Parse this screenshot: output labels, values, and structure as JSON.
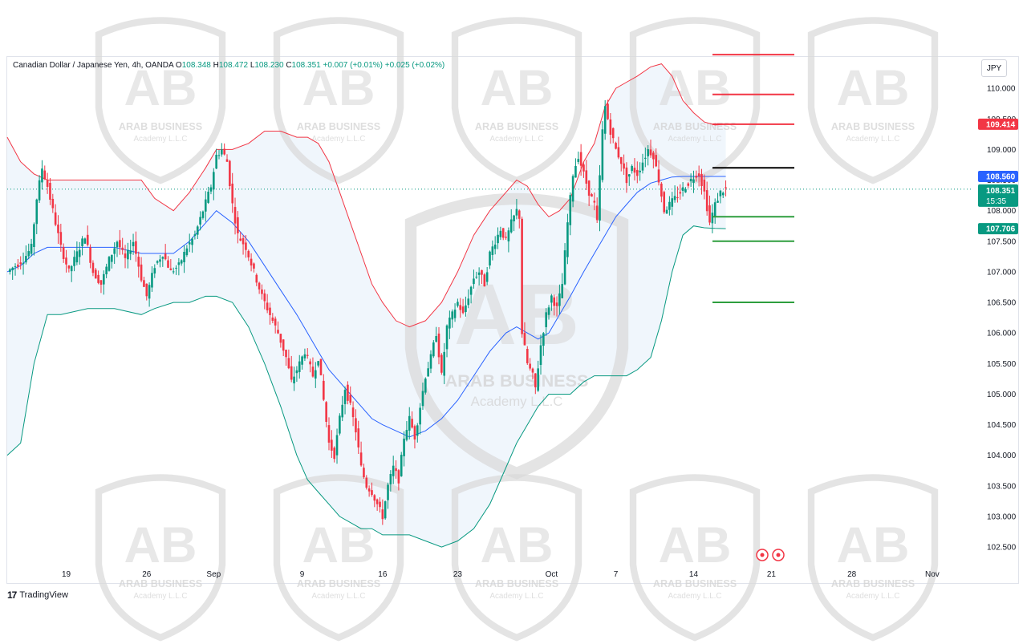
{
  "legend": {
    "symbol": "Canadian Dollar / Japanese Yen, 4h, OANDA",
    "o_label": "O",
    "o_value": "108.348",
    "h_label": "H",
    "h_value": "108.472",
    "l_label": "L",
    "l_value": "108.230",
    "c_label": "C",
    "c_value": "108.351",
    "change": "+0.007 (+0.01%)",
    "change2": "+0.025 (+0.02%)"
  },
  "currency_button": "JPY",
  "branding": {
    "logo_mark": "17",
    "name": "TradingView"
  },
  "watermark": {
    "badge_text": "AB",
    "line1": "ARAB BUSINESS",
    "line2": "Academy L.L.C"
  },
  "colors": {
    "up": "#089981",
    "down": "#f23645",
    "upper_band": "#f23645",
    "middle_band": "#2962ff",
    "lower_band": "#089981",
    "band_fill": "#e3effa",
    "resistance": "#f23645",
    "support": "#2e9e3e",
    "pivot": "#000000"
  },
  "chart_data": {
    "type": "candlestick",
    "symbol": "Canadian Dollar / Japanese Yen",
    "timeframe": "4h",
    "source": "OANDA",
    "ylim": [
      102.2,
      110.5
    ],
    "y_ticks": [
      "110.000",
      "109.500",
      "109.000",
      "108.500",
      "108.000",
      "107.500",
      "107.000",
      "106.500",
      "106.000",
      "105.500",
      "105.000",
      "104.500",
      "104.000",
      "103.500",
      "103.000",
      "102.500"
    ],
    "x_ticks": [
      "19",
      "26",
      "Sep",
      "9",
      "16",
      "23",
      "Oct",
      "7",
      "14",
      "21",
      "28",
      "Nov"
    ],
    "x_tick_index": [
      22,
      52,
      77,
      110,
      140,
      168,
      203,
      227,
      256,
      285,
      315,
      345
    ],
    "price_series": [
      [
        0,
        107.0
      ],
      [
        3,
        107.1
      ],
      [
        6,
        107.2
      ],
      [
        9,
        107.4
      ],
      [
        11,
        108.2
      ],
      [
        13,
        108.7
      ],
      [
        15,
        108.4
      ],
      [
        17,
        108.0
      ],
      [
        20,
        107.4
      ],
      [
        23,
        107.0
      ],
      [
        26,
        107.3
      ],
      [
        29,
        107.6
      ],
      [
        32,
        107.0
      ],
      [
        35,
        106.8
      ],
      [
        38,
        107.2
      ],
      [
        41,
        107.5
      ],
      [
        44,
        107.2
      ],
      [
        47,
        107.5
      ],
      [
        50,
        106.9
      ],
      [
        52,
        106.6
      ],
      [
        55,
        107.1
      ],
      [
        58,
        107.3
      ],
      [
        61,
        107.0
      ],
      [
        64,
        107.1
      ],
      [
        67,
        107.4
      ],
      [
        70,
        107.6
      ],
      [
        73,
        108.0
      ],
      [
        76,
        108.4
      ],
      [
        78,
        108.9
      ],
      [
        80,
        109.0
      ],
      [
        82,
        108.8
      ],
      [
        84,
        108.1
      ],
      [
        86,
        107.6
      ],
      [
        89,
        107.4
      ],
      [
        92,
        107.0
      ],
      [
        95,
        106.6
      ],
      [
        98,
        106.3
      ],
      [
        101,
        106.0
      ],
      [
        104,
        105.6
      ],
      [
        106,
        105.2
      ],
      [
        108,
        105.4
      ],
      [
        111,
        105.7
      ],
      [
        114,
        105.3
      ],
      [
        116,
        105.6
      ],
      [
        118,
        104.9
      ],
      [
        120,
        104.2
      ],
      [
        122,
        104.0
      ],
      [
        124,
        104.6
      ],
      [
        126,
        105.1
      ],
      [
        128,
        104.8
      ],
      [
        130,
        104.4
      ],
      [
        132,
        103.8
      ],
      [
        134,
        103.5
      ],
      [
        136,
        103.4
      ],
      [
        138,
        103.2
      ],
      [
        140,
        103.0
      ],
      [
        142,
        103.5
      ],
      [
        144,
        103.8
      ],
      [
        146,
        103.6
      ],
      [
        148,
        104.3
      ],
      [
        150,
        104.6
      ],
      [
        152,
        104.3
      ],
      [
        154,
        104.8
      ],
      [
        156,
        105.3
      ],
      [
        158,
        105.6
      ],
      [
        160,
        106.0
      ],
      [
        162,
        105.3
      ],
      [
        164,
        106.1
      ],
      [
        166,
        106.3
      ],
      [
        168,
        106.5
      ],
      [
        170,
        106.3
      ],
      [
        172,
        106.6
      ],
      [
        174,
        106.9
      ],
      [
        176,
        107.0
      ],
      [
        178,
        106.8
      ],
      [
        180,
        107.3
      ],
      [
        182,
        107.5
      ],
      [
        184,
        107.7
      ],
      [
        186,
        107.5
      ],
      [
        188,
        107.8
      ],
      [
        190,
        108.0
      ],
      [
        191,
        107.9
      ],
      [
        192,
        106.0
      ],
      [
        194,
        105.5
      ],
      [
        196,
        105.3
      ],
      [
        197,
        105.1
      ],
      [
        199,
        105.8
      ],
      [
        201,
        106.3
      ],
      [
        203,
        106.6
      ],
      [
        205,
        106.4
      ],
      [
        207,
        106.8
      ],
      [
        209,
        107.8
      ],
      [
        211,
        108.6
      ],
      [
        213,
        108.9
      ],
      [
        215,
        108.6
      ],
      [
        217,
        108.3
      ],
      [
        219,
        108.1
      ],
      [
        220,
        107.8
      ],
      [
        222,
        109.3
      ],
      [
        223,
        109.7
      ],
      [
        225,
        109.3
      ],
      [
        227,
        109.0
      ],
      [
        229,
        108.8
      ],
      [
        231,
        108.5
      ],
      [
        233,
        108.7
      ],
      [
        235,
        108.6
      ],
      [
        237,
        108.8
      ],
      [
        239,
        109.0
      ],
      [
        241,
        108.9
      ],
      [
        243,
        108.5
      ],
      [
        245,
        108.0
      ],
      [
        247,
        108.1
      ],
      [
        249,
        108.2
      ],
      [
        251,
        108.3
      ],
      [
        253,
        108.4
      ],
      [
        255,
        108.5
      ],
      [
        257,
        108.6
      ],
      [
        258,
        108.6
      ],
      [
        260,
        108.3
      ],
      [
        262,
        107.8
      ],
      [
        264,
        108.1
      ],
      [
        266,
        108.3
      ],
      [
        268,
        108.35
      ]
    ],
    "upper_band": [
      [
        0,
        109.2
      ],
      [
        5,
        108.8
      ],
      [
        10,
        108.6
      ],
      [
        15,
        108.5
      ],
      [
        20,
        108.5
      ],
      [
        30,
        108.5
      ],
      [
        40,
        108.5
      ],
      [
        50,
        108.5
      ],
      [
        55,
        108.2
      ],
      [
        62,
        108.0
      ],
      [
        68,
        108.3
      ],
      [
        74,
        108.7
      ],
      [
        78,
        109.0
      ],
      [
        84,
        109.0
      ],
      [
        90,
        109.1
      ],
      [
        96,
        109.3
      ],
      [
        102,
        109.3
      ],
      [
        108,
        109.2
      ],
      [
        112,
        109.2
      ],
      [
        116,
        109.1
      ],
      [
        120,
        108.8
      ],
      [
        124,
        108.3
      ],
      [
        128,
        107.8
      ],
      [
        132,
        107.3
      ],
      [
        136,
        106.8
      ],
      [
        140,
        106.5
      ],
      [
        145,
        106.2
      ],
      [
        150,
        106.1
      ],
      [
        156,
        106.2
      ],
      [
        162,
        106.5
      ],
      [
        168,
        107.0
      ],
      [
        174,
        107.6
      ],
      [
        180,
        108.0
      ],
      [
        186,
        108.3
      ],
      [
        190,
        108.5
      ],
      [
        194,
        108.4
      ],
      [
        198,
        108.1
      ],
      [
        202,
        107.9
      ],
      [
        206,
        108.0
      ],
      [
        210,
        108.2
      ],
      [
        215,
        108.8
      ],
      [
        219,
        109.1
      ],
      [
        223,
        109.7
      ],
      [
        227,
        110.0
      ],
      [
        231,
        110.1
      ],
      [
        235,
        110.2
      ],
      [
        240,
        110.35
      ],
      [
        244,
        110.4
      ],
      [
        248,
        110.2
      ],
      [
        252,
        109.8
      ],
      [
        256,
        109.6
      ],
      [
        260,
        109.45
      ],
      [
        264,
        109.4
      ],
      [
        268,
        109.414
      ]
    ],
    "middle_band": [
      [
        0,
        107.0
      ],
      [
        5,
        107.1
      ],
      [
        10,
        107.3
      ],
      [
        15,
        107.4
      ],
      [
        20,
        107.4
      ],
      [
        30,
        107.4
      ],
      [
        40,
        107.4
      ],
      [
        50,
        107.3
      ],
      [
        55,
        107.3
      ],
      [
        62,
        107.3
      ],
      [
        68,
        107.5
      ],
      [
        74,
        107.8
      ],
      [
        78,
        108.0
      ],
      [
        84,
        107.8
      ],
      [
        90,
        107.5
      ],
      [
        96,
        107.1
      ],
      [
        102,
        106.7
      ],
      [
        108,
        106.3
      ],
      [
        112,
        106.0
      ],
      [
        116,
        105.7
      ],
      [
        120,
        105.4
      ],
      [
        124,
        105.2
      ],
      [
        128,
        105.0
      ],
      [
        132,
        104.8
      ],
      [
        136,
        104.6
      ],
      [
        140,
        104.5
      ],
      [
        145,
        104.4
      ],
      [
        150,
        104.3
      ],
      [
        156,
        104.4
      ],
      [
        162,
        104.6
      ],
      [
        168,
        104.9
      ],
      [
        174,
        105.3
      ],
      [
        180,
        105.7
      ],
      [
        186,
        106.0
      ],
      [
        190,
        106.1
      ],
      [
        194,
        106.0
      ],
      [
        198,
        105.9
      ],
      [
        202,
        106.0
      ],
      [
        206,
        106.3
      ],
      [
        210,
        106.6
      ],
      [
        215,
        107.0
      ],
      [
        219,
        107.3
      ],
      [
        223,
        107.6
      ],
      [
        227,
        107.9
      ],
      [
        231,
        108.1
      ],
      [
        235,
        108.3
      ],
      [
        240,
        108.45
      ],
      [
        244,
        108.5
      ],
      [
        248,
        108.55
      ],
      [
        252,
        108.56
      ],
      [
        256,
        108.56
      ],
      [
        260,
        108.56
      ],
      [
        264,
        108.56
      ],
      [
        268,
        108.56
      ]
    ],
    "lower_band": [
      [
        0,
        104.0
      ],
      [
        5,
        104.2
      ],
      [
        10,
        105.5
      ],
      [
        15,
        106.3
      ],
      [
        20,
        106.3
      ],
      [
        30,
        106.4
      ],
      [
        40,
        106.4
      ],
      [
        50,
        106.3
      ],
      [
        55,
        106.4
      ],
      [
        62,
        106.5
      ],
      [
        68,
        106.5
      ],
      [
        74,
        106.6
      ],
      [
        78,
        106.6
      ],
      [
        84,
        106.5
      ],
      [
        90,
        106.1
      ],
      [
        96,
        105.5
      ],
      [
        102,
        104.8
      ],
      [
        108,
        104.0
      ],
      [
        112,
        103.6
      ],
      [
        116,
        103.4
      ],
      [
        120,
        103.2
      ],
      [
        124,
        103.0
      ],
      [
        128,
        102.9
      ],
      [
        132,
        102.8
      ],
      [
        136,
        102.8
      ],
      [
        140,
        102.7
      ],
      [
        145,
        102.7
      ],
      [
        150,
        102.7
      ],
      [
        156,
        102.6
      ],
      [
        162,
        102.5
      ],
      [
        168,
        102.6
      ],
      [
        174,
        102.8
      ],
      [
        180,
        103.2
      ],
      [
        186,
        103.8
      ],
      [
        190,
        104.2
      ],
      [
        194,
        104.5
      ],
      [
        198,
        104.8
      ],
      [
        202,
        105.0
      ],
      [
        206,
        105.0
      ],
      [
        210,
        105.0
      ],
      [
        215,
        105.2
      ],
      [
        219,
        105.3
      ],
      [
        223,
        105.3
      ],
      [
        227,
        105.3
      ],
      [
        231,
        105.3
      ],
      [
        235,
        105.4
      ],
      [
        240,
        105.6
      ],
      [
        244,
        106.2
      ],
      [
        248,
        107.0
      ],
      [
        252,
        107.6
      ],
      [
        256,
        107.75
      ],
      [
        260,
        107.72
      ],
      [
        264,
        107.71
      ],
      [
        268,
        107.706
      ]
    ],
    "horizontal_levels": [
      {
        "role": "resistance",
        "price": 110.55
      },
      {
        "role": "resistance",
        "price": 109.9
      },
      {
        "role": "resistance",
        "price": 109.414
      },
      {
        "role": "pivot",
        "price": 108.7
      },
      {
        "role": "support",
        "price": 107.9
      },
      {
        "role": "support",
        "price": 107.5
      },
      {
        "role": "support",
        "price": 106.5
      }
    ],
    "last_price": {
      "value": 108.351,
      "label": "108.351",
      "countdown": "15:35"
    },
    "price_labels": [
      {
        "value": 109.414,
        "label": "109.414",
        "color": "#f23645"
      },
      {
        "value": 108.56,
        "label": "108.560",
        "color": "#2962ff"
      },
      {
        "value": 107.706,
        "label": "107.706",
        "color": "#089981"
      }
    ],
    "events_count": 2,
    "grid": false
  }
}
